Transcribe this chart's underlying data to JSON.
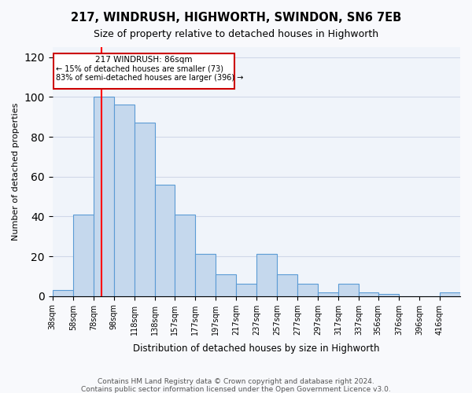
{
  "title": "217, WINDRUSH, HIGHWORTH, SWINDON, SN6 7EB",
  "subtitle": "Size of property relative to detached houses in Highworth",
  "xlabel": "Distribution of detached houses by size in Highworth",
  "ylabel": "Number of detached properties",
  "bar_color": "#c5d8ed",
  "bar_edge_color": "#5b9bd5",
  "grid_color": "#d0d8e8",
  "background_color": "#f0f4fa",
  "annotation_box_color": "#cc0000",
  "red_line_x": 86,
  "property_size": 86,
  "annotation_line1": "217 WINDRUSH: 86sqm",
  "annotation_line2": "← 15% of detached houses are smaller (73)",
  "annotation_line3": "83% of semi-detached houses are larger (396) →",
  "bins": [
    38,
    58,
    78,
    98,
    118,
    138,
    157,
    177,
    197,
    217,
    237,
    257,
    277,
    297,
    317,
    337,
    356,
    376,
    396,
    416,
    436
  ],
  "counts": [
    3,
    41,
    100,
    96,
    87,
    56,
    41,
    21,
    11,
    6,
    21,
    11,
    6,
    2,
    6,
    2,
    1,
    0,
    0,
    2
  ],
  "ylim": [
    0,
    125
  ],
  "yticks": [
    0,
    20,
    40,
    60,
    80,
    100,
    120
  ],
  "footer_line1": "Contains HM Land Registry data © Crown copyright and database right 2024.",
  "footer_line2": "Contains public sector information licensed under the Open Government Licence v3.0."
}
